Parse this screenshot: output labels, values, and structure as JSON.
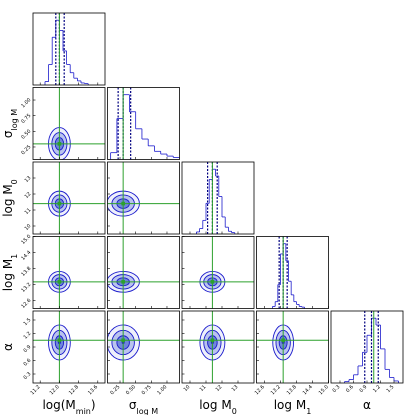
{
  "chart_data": {
    "type": "corner",
    "truth_color": "#2ca02c",
    "hist_color": "#1a1acc",
    "contour_color": "#1a1acc",
    "quantile_color": "#000080",
    "parameters": [
      {
        "label": [
          {
            "text": "log("
          },
          {
            "text": "M"
          },
          {
            "text": "min",
            "sub": true
          },
          {
            "text": ")"
          }
        ],
        "lim": [
          10.9,
          13.9
        ],
        "ticks": [
          11.2,
          {
            "value": 12,
            "label": "12.0"
          },
          12.8,
          13.6
        ],
        "truth": 12.0,
        "quantiles": [
          11.85,
          12.0,
          12.2
        ],
        "bins": [
          11.4,
          11.55,
          11.7,
          11.85,
          12.0,
          12.15,
          12.3,
          12.45,
          12.6,
          12.75,
          12.9,
          13.05,
          13.2
        ],
        "counts": [
          5,
          30,
          70,
          95,
          80,
          50,
          30,
          18,
          10,
          6,
          3,
          2
        ]
      },
      {
        "label": [
          {
            "text": "σ"
          },
          {
            "text": "log M",
            "sub": true
          }
        ],
        "lim": [
          0.05,
          1.2
        ],
        "ticks": [
          0.25,
          {
            "value": 0.5,
            "label": "0.50"
          },
          0.75,
          {
            "value": 1,
            "label": "1.00"
          }
        ],
        "truth": 0.3,
        "quantiles": [
          0.22,
          0.3,
          0.42
        ],
        "bins": [
          0.1,
          0.2,
          0.3,
          0.4,
          0.5,
          0.6,
          0.7,
          0.8,
          0.9,
          1.0,
          1.1,
          1.2,
          1.3
        ],
        "counts": [
          10,
          60,
          95,
          70,
          45,
          30,
          20,
          12,
          8,
          5,
          3,
          2
        ]
      },
      {
        "label": [
          {
            "text": "log M"
          },
          {
            "text": "0",
            "sub": true
          }
        ],
        "lim": [
          9.5,
          14.0
        ],
        "ticks": [
          10,
          11,
          12,
          13
        ],
        "truth": 11.4,
        "quantiles": [
          11.1,
          11.4,
          11.7
        ],
        "bins": [
          10.4,
          10.6,
          10.8,
          11.0,
          11.2,
          11.4,
          11.6,
          11.8,
          12.0,
          12.2,
          12.4,
          12.6,
          12.8
        ],
        "counts": [
          3,
          8,
          20,
          45,
          80,
          95,
          85,
          55,
          25,
          10,
          4,
          2
        ]
      },
      {
        "label": [
          {
            "text": "log M"
          },
          {
            "text": "1",
            "sub": true
          }
        ],
        "lim": [
          12.3,
          15.0
        ],
        "ticks": [
          12.6,
          13.2,
          13.8,
          14.4,
          {
            "value": 15,
            "label": "15.0"
          }
        ],
        "truth": 13.3,
        "quantiles": [
          13.15,
          13.3,
          13.45
        ],
        "bins": [
          12.9,
          13.0,
          13.1,
          13.2,
          13.3,
          13.4,
          13.5,
          13.6,
          13.7,
          13.8,
          13.9,
          14.0,
          14.1
        ],
        "counts": [
          3,
          10,
          35,
          80,
          95,
          70,
          40,
          20,
          10,
          6,
          3,
          2
        ]
      },
      {
        "label": [
          {
            "text": "α"
          }
        ],
        "lim": [
          0.1,
          1.7
        ],
        "ticks": [
          0.3,
          0.6,
          0.9,
          1.2,
          1.5
        ],
        "truth": 1.05,
        "quantiles": [
          0.85,
          1.0,
          1.15
        ],
        "bins": [
          0.4,
          0.5,
          0.6,
          0.7,
          0.8,
          0.9,
          1.0,
          1.1,
          1.2,
          1.3,
          1.4,
          1.5,
          1.6
        ],
        "counts": [
          2,
          5,
          12,
          25,
          45,
          70,
          95,
          85,
          50,
          20,
          8,
          3
        ]
      }
    ]
  }
}
